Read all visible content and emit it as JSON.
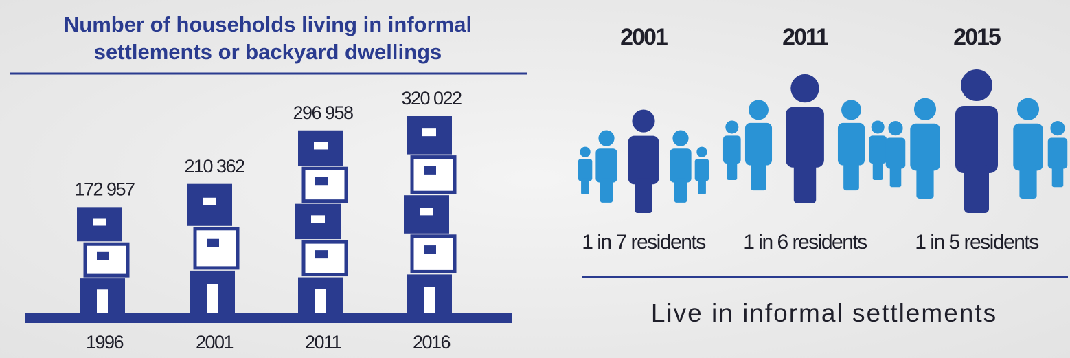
{
  "chart_data": {
    "type": "bar",
    "title": [
      "Number of households living in informal",
      "settlements or backyard dwellings"
    ],
    "categories": [
      "1996",
      "2001",
      "2011",
      "2016"
    ],
    "values": [
      172957,
      210362,
      296958,
      320022
    ],
    "value_labels": [
      "172 957",
      "210 362",
      "296 958",
      "320 022"
    ],
    "color": "#2a3b8f"
  },
  "settlements": {
    "groups": [
      {
        "year": "2001",
        "label": "1 in 7 residents"
      },
      {
        "year": "2011",
        "label": "1 in 6 residents"
      },
      {
        "year": "2015",
        "label": "1 in 5 residents"
      }
    ],
    "caption": "Live in informal settlements"
  }
}
